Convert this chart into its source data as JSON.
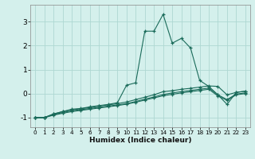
{
  "xlabel": "Humidex (Indice chaleur)",
  "ylabel": "",
  "bg_color": "#d4f0ec",
  "grid_color": "#aed8d2",
  "line_color": "#1a6b5a",
  "xlim": [
    -0.5,
    23.5
  ],
  "ylim": [
    -1.4,
    3.7
  ],
  "yticks": [
    -1,
    0,
    1,
    2,
    3
  ],
  "xticks": [
    0,
    1,
    2,
    3,
    4,
    5,
    6,
    7,
    8,
    9,
    10,
    11,
    12,
    13,
    14,
    15,
    16,
    17,
    18,
    19,
    20,
    21,
    22,
    23
  ],
  "series": [
    {
      "x": [
        0,
        1,
        2,
        3,
        4,
        5,
        6,
        7,
        8,
        9,
        10,
        11,
        12,
        13,
        14,
        15,
        16,
        17,
        18,
        19,
        20,
        21,
        22,
        23
      ],
      "y": [
        -1.0,
        -1.0,
        -0.85,
        -0.75,
        -0.65,
        -0.62,
        -0.55,
        -0.5,
        -0.45,
        -0.38,
        0.35,
        0.45,
        2.6,
        2.6,
        3.3,
        2.1,
        2.3,
        1.9,
        0.55,
        0.3,
        -0.05,
        -0.45,
        0.05,
        0.1
      ]
    },
    {
      "x": [
        0,
        1,
        2,
        3,
        4,
        5,
        6,
        7,
        8,
        9,
        10,
        11,
        12,
        13,
        14,
        15,
        16,
        17,
        18,
        19,
        20,
        21,
        22,
        23
      ],
      "y": [
        -1.0,
        -1.0,
        -0.85,
        -0.75,
        -0.68,
        -0.63,
        -0.58,
        -0.52,
        -0.47,
        -0.42,
        -0.35,
        -0.25,
        -0.15,
        -0.05,
        0.08,
        0.12,
        0.18,
        0.22,
        0.27,
        0.32,
        0.3,
        -0.05,
        0.05,
        0.1
      ]
    },
    {
      "x": [
        0,
        1,
        2,
        3,
        4,
        5,
        6,
        7,
        8,
        9,
        10,
        11,
        12,
        13,
        14,
        15,
        16,
        17,
        18,
        19,
        20,
        21,
        22,
        23
      ],
      "y": [
        -1.0,
        -1.0,
        -0.88,
        -0.79,
        -0.72,
        -0.67,
        -0.62,
        -0.57,
        -0.52,
        -0.47,
        -0.42,
        -0.33,
        -0.23,
        -0.14,
        -0.04,
        0.03,
        0.08,
        0.13,
        0.18,
        0.23,
        -0.05,
        -0.25,
        -0.02,
        0.03
      ]
    },
    {
      "x": [
        0,
        1,
        2,
        3,
        4,
        5,
        6,
        7,
        8,
        9,
        10,
        11,
        12,
        13,
        14,
        15,
        16,
        17,
        18,
        19,
        20,
        21,
        22,
        23
      ],
      "y": [
        -1.0,
        -1.0,
        -0.9,
        -0.82,
        -0.75,
        -0.7,
        -0.65,
        -0.6,
        -0.55,
        -0.5,
        -0.44,
        -0.36,
        -0.27,
        -0.18,
        -0.09,
        -0.03,
        0.03,
        0.08,
        0.13,
        0.18,
        -0.1,
        -0.28,
        -0.05,
        0.0
      ]
    }
  ]
}
